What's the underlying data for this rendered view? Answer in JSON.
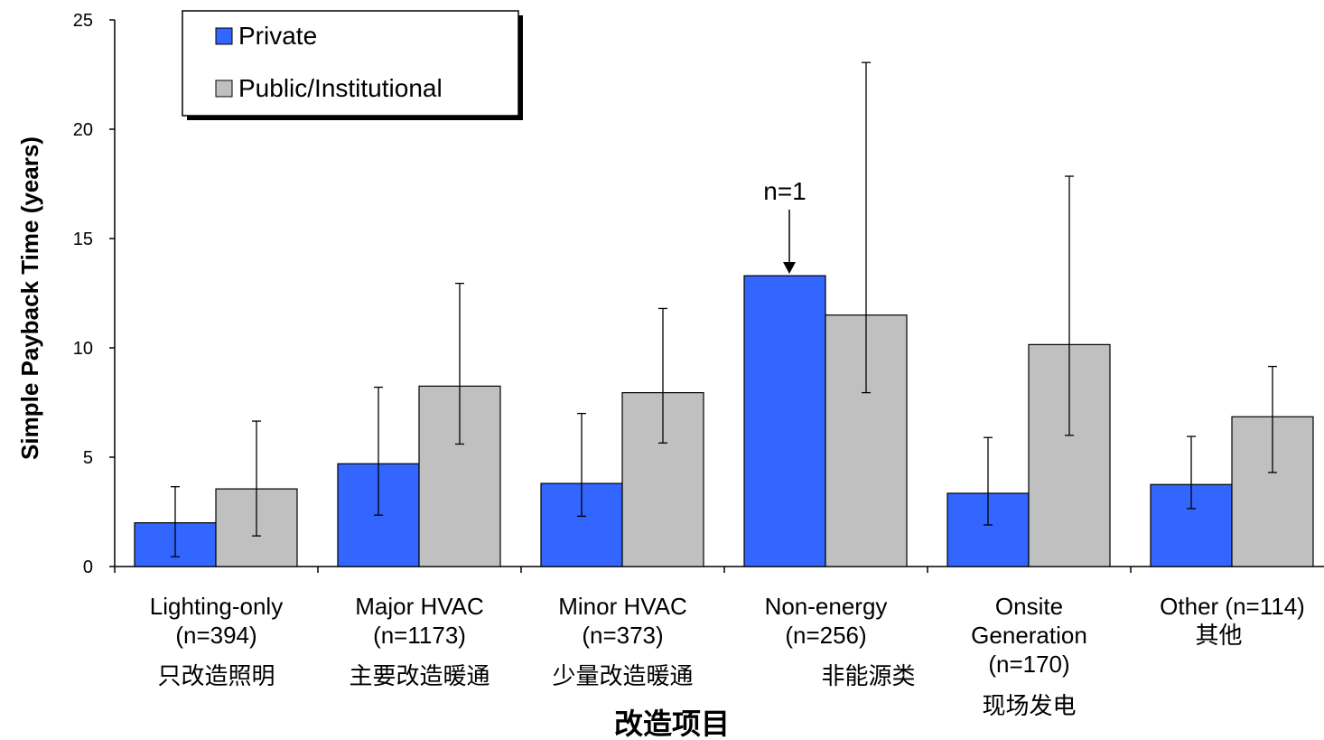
{
  "chart_data": {
    "type": "bar",
    "ylabel": "Simple Payback Time (years)",
    "xlabel": "改造项目",
    "ylim": [
      0,
      25
    ],
    "yticks": [
      "0",
      "5",
      "10",
      "15",
      "20",
      "25"
    ],
    "legend_position": "top-left",
    "categories": [
      {
        "label1": "Lighting-only",
        "label2": "(n=394)",
        "label3": "",
        "cn": "只改造照明"
      },
      {
        "label1": "Major HVAC",
        "label2": "(n=1173)",
        "label3": "",
        "cn": "主要改造暖通"
      },
      {
        "label1": "Minor HVAC",
        "label2": "(n=373)",
        "label3": "",
        "cn": "少量改造暖通"
      },
      {
        "label1": "Non-energy",
        "label2": "(n=256)",
        "label3": "",
        "cn": "非能源类"
      },
      {
        "label1": "Onsite",
        "label2": "Generation",
        "label3": "(n=170)",
        "cn": "现场发电"
      },
      {
        "label1": "Other (n=114)",
        "label2": "",
        "label3": "",
        "cn": "其他"
      }
    ],
    "series": [
      {
        "name": "Private",
        "color": "#3366ff",
        "values": [
          2.0,
          4.7,
          3.8,
          13.3,
          3.35,
          3.75
        ],
        "err_low": [
          0.45,
          2.35,
          2.3,
          null,
          1.9,
          2.65
        ],
        "err_high": [
          3.65,
          8.2,
          7.0,
          null,
          5.9,
          5.95
        ]
      },
      {
        "name": "Public/Institutional",
        "color": "#c0c0c0",
        "values": [
          3.55,
          8.25,
          7.95,
          11.5,
          10.15,
          6.85
        ],
        "err_low": [
          1.4,
          5.6,
          5.65,
          7.95,
          6.0,
          4.3
        ],
        "err_high": [
          6.65,
          12.95,
          11.8,
          23.05,
          17.85,
          9.15
        ]
      }
    ],
    "annotations": [
      {
        "text": "n=1",
        "category_index": 3,
        "series_index": 0
      }
    ]
  }
}
